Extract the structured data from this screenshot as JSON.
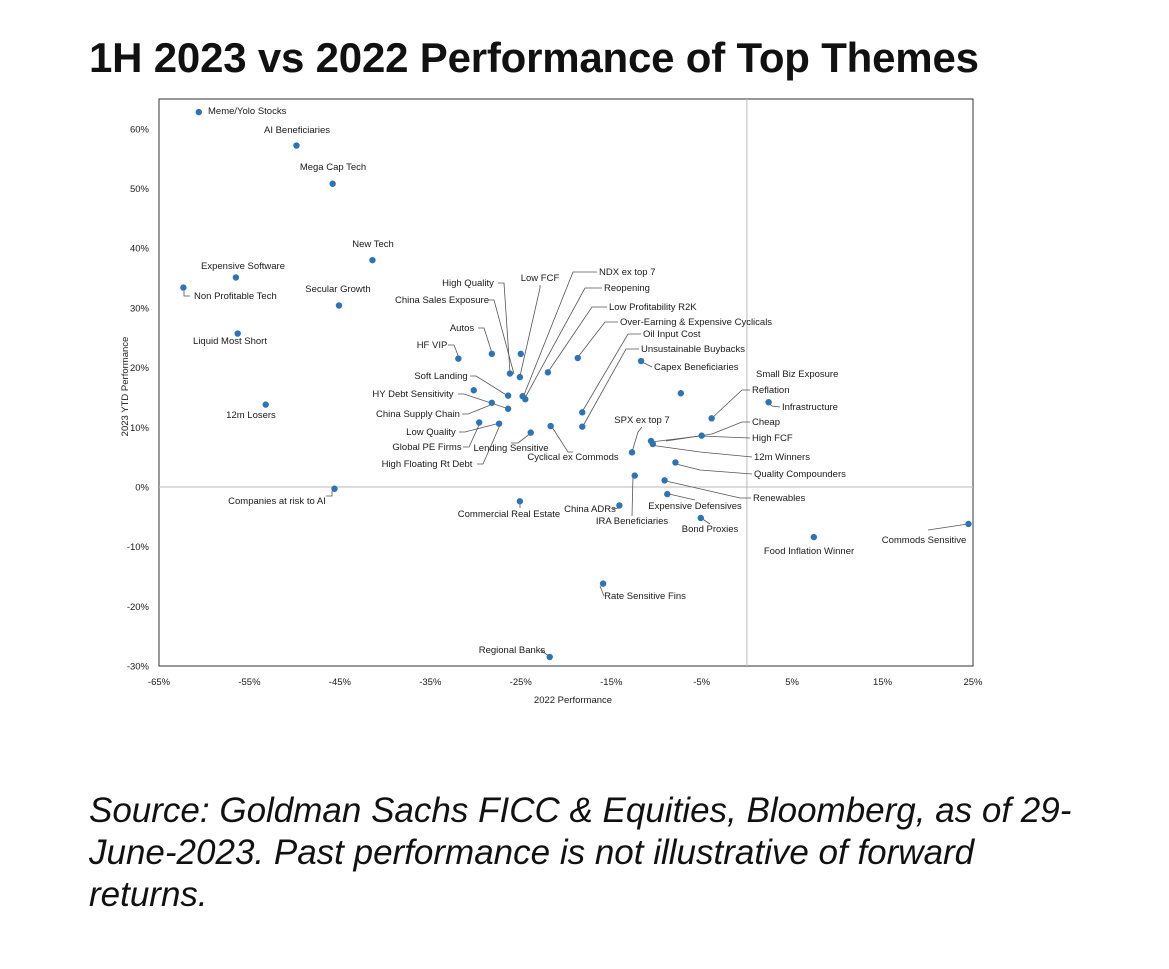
{
  "title": "1H 2023 vs 2022 Performance of Top Themes",
  "source": "Source: Goldman Sachs FICC & Equities, Bloomberg, as of 29-June-2023. Past performance is not illustrative of forward returns.",
  "colors": {
    "point": "#2e74b5",
    "frame": "#333333",
    "zero_line": "#bbbbbb"
  },
  "chart_data": {
    "type": "scatter",
    "title": "1H 2023 vs 2022 Performance of Top Themes",
    "xlabel": "2022 Performance",
    "ylabel": "2023 YTD Performance",
    "xlim": [
      -65,
      25
    ],
    "ylim": [
      -30,
      65
    ],
    "x_ticks": [
      -65,
      -55,
      -45,
      -35,
      -25,
      -15,
      -5,
      5,
      15,
      25
    ],
    "x_tick_labels": [
      "-65%",
      "-55%",
      "-45%",
      "-35%",
      "-25%",
      "-15%",
      "-5%",
      "5%",
      "15%",
      "25%"
    ],
    "y_ticks": [
      -30,
      -20,
      -10,
      0,
      10,
      20,
      30,
      40,
      50,
      60
    ],
    "y_tick_labels": [
      "-30%",
      "-20%",
      "-10%",
      "0%",
      "10%",
      "20%",
      "30%",
      "40%",
      "50%",
      "60%"
    ],
    "points": [
      {
        "label": "Meme/Yolo Stocks",
        "x": -60.6,
        "y": 62.8
      },
      {
        "label": "AI Beneficiaries",
        "x": -49.8,
        "y": 57.2
      },
      {
        "label": "Mega Cap Tech",
        "x": -45.8,
        "y": 50.8
      },
      {
        "label": "New Tech",
        "x": -41.4,
        "y": 38.0
      },
      {
        "label": "Expensive Software",
        "x": -56.5,
        "y": 35.1
      },
      {
        "label": "Non Profitable Tech",
        "x": -62.3,
        "y": 33.4
      },
      {
        "label": "Secular Growth",
        "x": -45.1,
        "y": 30.4
      },
      {
        "label": "Liquid Most Short",
        "x": -56.3,
        "y": 25.7
      },
      {
        "label": "12m Losers",
        "x": -53.2,
        "y": 13.8
      },
      {
        "label": "Companies at risk to AI",
        "x": -45.6,
        "y": -0.3
      },
      {
        "label": "HF VIP",
        "x": -31.9,
        "y": 21.5
      },
      {
        "label": "Autos",
        "x": -28.2,
        "y": 22.3
      },
      {
        "label": "High Quality",
        "x": -26.2,
        "y": 19.0
      },
      {
        "label": "Low FCF",
        "x": -25.0,
        "y": 22.3
      },
      {
        "label": "China Sales Exposure",
        "x": -25.1,
        "y": 18.4
      },
      {
        "label": "Soft Landing",
        "x": -30.2,
        "y": 16.2
      },
      {
        "label": "HY Debt Sensitivity",
        "x": -26.4,
        "y": 15.3
      },
      {
        "label": "NDX ex top 7",
        "x": -24.8,
        "y": 15.2
      },
      {
        "label": "Reopening",
        "x": -24.5,
        "y": 14.7
      },
      {
        "label": "China Supply Chain",
        "x": -28.2,
        "y": 14.1
      },
      {
        "label": "Low Quality",
        "x": -26.4,
        "y": 13.1
      },
      {
        "label": "Global PE Firms",
        "x": -29.6,
        "y": 10.8
      },
      {
        "label": "High Floating Rt Debt",
        "x": -27.4,
        "y": 10.6
      },
      {
        "label": "Lending Sensitive",
        "x": -23.9,
        "y": 9.1
      },
      {
        "label": "Low Profitability R2K",
        "x": -22.0,
        "y": 19.2
      },
      {
        "label": "Over-Earning & Expensive Cyclicals",
        "x": -18.7,
        "y": 21.6
      },
      {
        "label": "Cyclical ex Commods",
        "x": -21.7,
        "y": 10.2
      },
      {
        "label": "Oil Input Cost",
        "x": -18.2,
        "y": 12.5
      },
      {
        "label": "Unsustainable Buybacks",
        "x": -18.2,
        "y": 10.1
      },
      {
        "label": "Capex Beneficiaries",
        "x": -11.7,
        "y": 21.1
      },
      {
        "label": "Small Biz Exposure",
        "x": -7.3,
        "y": 15.7
      },
      {
        "label": "Reflation",
        "x": -3.9,
        "y": 11.5
      },
      {
        "label": "Infrastructure",
        "x": 2.4,
        "y": 14.2
      },
      {
        "label": "Cheap",
        "x": -5.0,
        "y": 8.6
      },
      {
        "label": "High FCF",
        "x": -10.6,
        "y": 7.7
      },
      {
        "label": "12m Winners",
        "x": -10.4,
        "y": 7.2
      },
      {
        "label": "SPX ex top 7",
        "x": -12.7,
        "y": 5.8
      },
      {
        "label": "Quality Compounders",
        "x": -7.9,
        "y": 4.1
      },
      {
        "label": "China ADRs",
        "x": -12.4,
        "y": 1.9
      },
      {
        "label": "Renewables",
        "x": -9.1,
        "y": 1.1
      },
      {
        "label": "Expensive Defensives",
        "x": -8.8,
        "y": -1.2
      },
      {
        "label": "IRA Beneficiaries",
        "x": -14.1,
        "y": -3.1
      },
      {
        "label": "Commercial Real Estate",
        "x": -25.1,
        "y": -2.4
      },
      {
        "label": "Bond Proxies",
        "x": -5.1,
        "y": -5.2
      },
      {
        "label": "Food Inflation Winner",
        "x": 7.4,
        "y": -8.4
      },
      {
        "label": "Commods Sensitive",
        "x": 24.5,
        "y": -6.2
      },
      {
        "label": "Rate Sensitive Fins",
        "x": -15.9,
        "y": -16.2
      },
      {
        "label": "Regional Banks",
        "x": -21.8,
        "y": -28.5
      }
    ]
  }
}
